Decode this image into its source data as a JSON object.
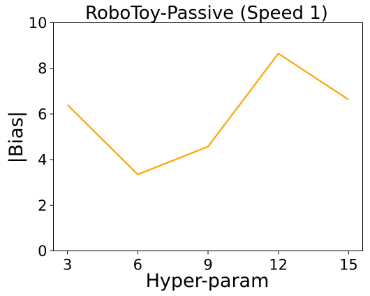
{
  "chart_data": {
    "type": "line",
    "title": "RoboToy-Passive (Speed 1)",
    "xlabel": "Hyper-param",
    "ylabel": "|Bias|",
    "x": [
      3,
      6,
      9,
      12,
      15
    ],
    "series": [
      {
        "values": [
          6.4,
          3.35,
          4.57,
          8.65,
          6.63
        ],
        "color": "#ffa500"
      }
    ],
    "xticks": [
      3,
      6,
      9,
      12,
      15
    ],
    "yticks": [
      0,
      2,
      4,
      6,
      8,
      10
    ],
    "xlim": [
      2.4,
      15.6
    ],
    "ylim": [
      0,
      10
    ],
    "grid": false,
    "legend": "none"
  }
}
